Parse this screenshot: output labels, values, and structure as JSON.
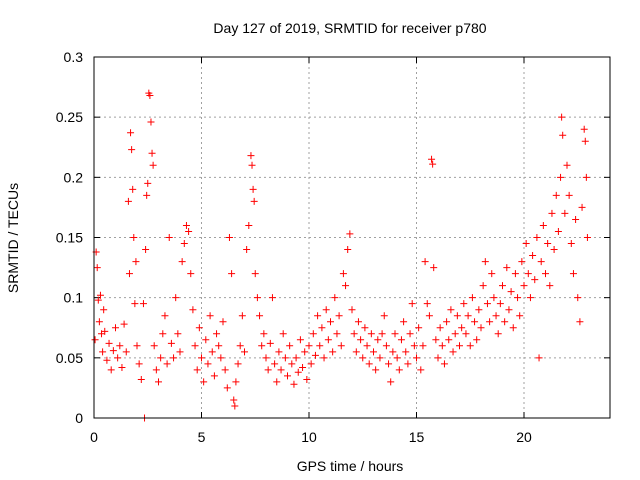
{
  "chart_data": {
    "type": "scatter",
    "title": "Day 127 of 2019, SRMTID for receiver p780",
    "xlabel": "GPS time / hours",
    "ylabel": "SRMTID / TECUs",
    "xlim": [
      0,
      24
    ],
    "ylim": [
      0,
      0.3
    ],
    "x_ticks": [
      0,
      5,
      10,
      15,
      20
    ],
    "x_tick_labels": [
      "0",
      "5",
      "10",
      "15",
      "20"
    ],
    "y_ticks": [
      0,
      0.05,
      0.1,
      0.15,
      0.2,
      0.25,
      0.3
    ],
    "y_tick_labels": [
      "0",
      "0.05",
      "0.1",
      "0.15",
      "0.2",
      "0.25",
      "0.3"
    ],
    "grid": true,
    "marker": "+",
    "color": "#ff0000",
    "series": [
      {
        "name": "SRMTID",
        "points": [
          [
            0.05,
            0.065
          ],
          [
            0.1,
            0.138
          ],
          [
            0.15,
            0.125
          ],
          [
            0.2,
            0.098
          ],
          [
            0.25,
            0.08
          ],
          [
            0.3,
            0.102
          ],
          [
            0.35,
            0.07
          ],
          [
            0.4,
            0.055
          ],
          [
            0.45,
            0.09
          ],
          [
            0.5,
            0.072
          ],
          [
            0.6,
            0.048
          ],
          [
            0.7,
            0.062
          ],
          [
            0.8,
            0.04
          ],
          [
            0.9,
            0.056
          ],
          [
            1.0,
            0.075
          ],
          [
            1.1,
            0.05
          ],
          [
            1.2,
            0.06
          ],
          [
            1.3,
            0.042
          ],
          [
            1.4,
            0.078
          ],
          [
            1.5,
            0.055
          ],
          [
            1.6,
            0.18
          ],
          [
            1.65,
            0.12
          ],
          [
            1.7,
            0.237
          ],
          [
            1.75,
            0.223
          ],
          [
            1.8,
            0.19
          ],
          [
            1.85,
            0.15
          ],
          [
            1.9,
            0.095
          ],
          [
            1.95,
            0.13
          ],
          [
            2.0,
            0.06
          ],
          [
            2.1,
            0.045
          ],
          [
            2.2,
            0.032
          ],
          [
            2.3,
            0.095
          ],
          [
            2.35,
            0.0
          ],
          [
            2.4,
            0.14
          ],
          [
            2.45,
            0.185
          ],
          [
            2.5,
            0.195
          ],
          [
            2.55,
            0.27
          ],
          [
            2.6,
            0.268
          ],
          [
            2.65,
            0.246
          ],
          [
            2.7,
            0.22
          ],
          [
            2.75,
            0.21
          ],
          [
            2.8,
            0.06
          ],
          [
            2.9,
            0.04
          ],
          [
            3.0,
            0.03
          ],
          [
            3.1,
            0.05
          ],
          [
            3.2,
            0.07
          ],
          [
            3.3,
            0.085
          ],
          [
            3.4,
            0.045
          ],
          [
            3.5,
            0.15
          ],
          [
            3.6,
            0.062
          ],
          [
            3.7,
            0.05
          ],
          [
            3.8,
            0.1
          ],
          [
            3.9,
            0.07
          ],
          [
            4.0,
            0.055
          ],
          [
            4.1,
            0.13
          ],
          [
            4.2,
            0.145
          ],
          [
            4.3,
            0.16
          ],
          [
            4.4,
            0.155
          ],
          [
            4.5,
            0.12
          ],
          [
            4.6,
            0.09
          ],
          [
            4.7,
            0.06
          ],
          [
            4.8,
            0.04
          ],
          [
            4.9,
            0.075
          ],
          [
            5.0,
            0.05
          ],
          [
            5.1,
            0.03
          ],
          [
            5.2,
            0.065
          ],
          [
            5.3,
            0.045
          ],
          [
            5.4,
            0.085
          ],
          [
            5.5,
            0.055
          ],
          [
            5.6,
            0.035
          ],
          [
            5.7,
            0.07
          ],
          [
            5.8,
            0.06
          ],
          [
            5.9,
            0.05
          ],
          [
            6.0,
            0.08
          ],
          [
            6.1,
            0.04
          ],
          [
            6.2,
            0.025
          ],
          [
            6.3,
            0.15
          ],
          [
            6.4,
            0.12
          ],
          [
            6.5,
            0.015
          ],
          [
            6.55,
            0.01
          ],
          [
            6.6,
            0.03
          ],
          [
            6.7,
            0.045
          ],
          [
            6.8,
            0.06
          ],
          [
            6.9,
            0.085
          ],
          [
            7.0,
            0.055
          ],
          [
            7.1,
            0.14
          ],
          [
            7.2,
            0.16
          ],
          [
            7.3,
            0.218
          ],
          [
            7.35,
            0.21
          ],
          [
            7.4,
            0.19
          ],
          [
            7.45,
            0.18
          ],
          [
            7.5,
            0.12
          ],
          [
            7.6,
            0.1
          ],
          [
            7.7,
            0.085
          ],
          [
            7.8,
            0.06
          ],
          [
            7.9,
            0.07
          ],
          [
            8.0,
            0.05
          ],
          [
            8.1,
            0.04
          ],
          [
            8.2,
            0.062
          ],
          [
            8.3,
            0.1
          ],
          [
            8.4,
            0.045
          ],
          [
            8.5,
            0.03
          ],
          [
            8.6,
            0.055
          ],
          [
            8.7,
            0.04
          ],
          [
            8.8,
            0.07
          ],
          [
            8.9,
            0.05
          ],
          [
            9.0,
            0.035
          ],
          [
            9.1,
            0.06
          ],
          [
            9.2,
            0.045
          ],
          [
            9.3,
            0.028
          ],
          [
            9.4,
            0.05
          ],
          [
            9.5,
            0.038
          ],
          [
            9.6,
            0.065
          ],
          [
            9.7,
            0.042
          ],
          [
            9.8,
            0.055
          ],
          [
            9.9,
            0.032
          ],
          [
            10.0,
            0.06
          ],
          [
            10.1,
            0.045
          ],
          [
            10.2,
            0.07
          ],
          [
            10.3,
            0.052
          ],
          [
            10.4,
            0.085
          ],
          [
            10.5,
            0.06
          ],
          [
            10.6,
            0.075
          ],
          [
            10.7,
            0.05
          ],
          [
            10.8,
            0.09
          ],
          [
            10.9,
            0.065
          ],
          [
            11.0,
            0.08
          ],
          [
            11.1,
            0.055
          ],
          [
            11.2,
            0.1
          ],
          [
            11.3,
            0.07
          ],
          [
            11.4,
            0.085
          ],
          [
            11.5,
            0.06
          ],
          [
            11.6,
            0.12
          ],
          [
            11.7,
            0.11
          ],
          [
            11.8,
            0.14
          ],
          [
            11.9,
            0.153
          ],
          [
            12.0,
            0.09
          ],
          [
            12.1,
            0.07
          ],
          [
            12.2,
            0.055
          ],
          [
            12.3,
            0.08
          ],
          [
            12.4,
            0.065
          ],
          [
            12.5,
            0.05
          ],
          [
            12.6,
            0.075
          ],
          [
            12.7,
            0.06
          ],
          [
            12.8,
            0.045
          ],
          [
            12.9,
            0.07
          ],
          [
            13.0,
            0.055
          ],
          [
            13.1,
            0.04
          ],
          [
            13.2,
            0.065
          ],
          [
            13.3,
            0.05
          ],
          [
            13.4,
            0.07
          ],
          [
            13.5,
            0.085
          ],
          [
            13.6,
            0.06
          ],
          [
            13.7,
            0.045
          ],
          [
            13.8,
            0.03
          ],
          [
            13.9,
            0.055
          ],
          [
            14.0,
            0.07
          ],
          [
            14.1,
            0.05
          ],
          [
            14.2,
            0.04
          ],
          [
            14.3,
            0.065
          ],
          [
            14.4,
            0.08
          ],
          [
            14.5,
            0.055
          ],
          [
            14.6,
            0.045
          ],
          [
            14.7,
            0.07
          ],
          [
            14.8,
            0.095
          ],
          [
            14.9,
            0.06
          ],
          [
            15.0,
            0.05
          ],
          [
            15.1,
            0.075
          ],
          [
            15.2,
            0.04
          ],
          [
            15.3,
            0.06
          ],
          [
            15.4,
            0.13
          ],
          [
            15.5,
            0.095
          ],
          [
            15.6,
            0.085
          ],
          [
            15.7,
            0.215
          ],
          [
            15.75,
            0.211
          ],
          [
            15.8,
            0.125
          ],
          [
            15.9,
            0.065
          ],
          [
            16.0,
            0.05
          ],
          [
            16.1,
            0.075
          ],
          [
            16.2,
            0.06
          ],
          [
            16.3,
            0.045
          ],
          [
            16.4,
            0.08
          ],
          [
            16.5,
            0.065
          ],
          [
            16.6,
            0.09
          ],
          [
            16.7,
            0.055
          ],
          [
            16.8,
            0.07
          ],
          [
            16.9,
            0.085
          ],
          [
            17.0,
            0.06
          ],
          [
            17.1,
            0.075
          ],
          [
            17.2,
            0.095
          ],
          [
            17.3,
            0.07
          ],
          [
            17.4,
            0.085
          ],
          [
            17.5,
            0.06
          ],
          [
            17.6,
            0.1
          ],
          [
            17.7,
            0.08
          ],
          [
            17.8,
            0.065
          ],
          [
            17.9,
            0.09
          ],
          [
            18.0,
            0.075
          ],
          [
            18.1,
            0.11
          ],
          [
            18.2,
            0.13
          ],
          [
            18.3,
            0.095
          ],
          [
            18.4,
            0.08
          ],
          [
            18.5,
            0.12
          ],
          [
            18.6,
            0.1
          ],
          [
            18.7,
            0.085
          ],
          [
            18.8,
            0.07
          ],
          [
            18.9,
            0.095
          ],
          [
            19.0,
            0.11
          ],
          [
            19.1,
            0.08
          ],
          [
            19.2,
            0.125
          ],
          [
            19.3,
            0.09
          ],
          [
            19.4,
            0.105
          ],
          [
            19.5,
            0.075
          ],
          [
            19.6,
            0.12
          ],
          [
            19.7,
            0.1
          ],
          [
            19.8,
            0.085
          ],
          [
            19.9,
            0.13
          ],
          [
            20.0,
            0.11
          ],
          [
            20.1,
            0.145
          ],
          [
            20.2,
            0.12
          ],
          [
            20.3,
            0.1
          ],
          [
            20.4,
            0.135
          ],
          [
            20.5,
            0.115
          ],
          [
            20.6,
            0.15
          ],
          [
            20.7,
            0.05
          ],
          [
            20.8,
            0.13
          ],
          [
            20.9,
            0.16
          ],
          [
            21.0,
            0.12
          ],
          [
            21.1,
            0.145
          ],
          [
            21.2,
            0.11
          ],
          [
            21.3,
            0.17
          ],
          [
            21.4,
            0.14
          ],
          [
            21.5,
            0.185
          ],
          [
            21.6,
            0.155
          ],
          [
            21.7,
            0.2
          ],
          [
            21.75,
            0.25
          ],
          [
            21.8,
            0.235
          ],
          [
            21.9,
            0.17
          ],
          [
            22.0,
            0.21
          ],
          [
            22.1,
            0.185
          ],
          [
            22.2,
            0.145
          ],
          [
            22.3,
            0.12
          ],
          [
            22.4,
            0.165
          ],
          [
            22.5,
            0.1
          ],
          [
            22.6,
            0.08
          ],
          [
            22.7,
            0.175
          ],
          [
            22.8,
            0.24
          ],
          [
            22.85,
            0.23
          ],
          [
            22.9,
            0.2
          ],
          [
            22.95,
            0.15
          ]
        ]
      }
    ]
  }
}
